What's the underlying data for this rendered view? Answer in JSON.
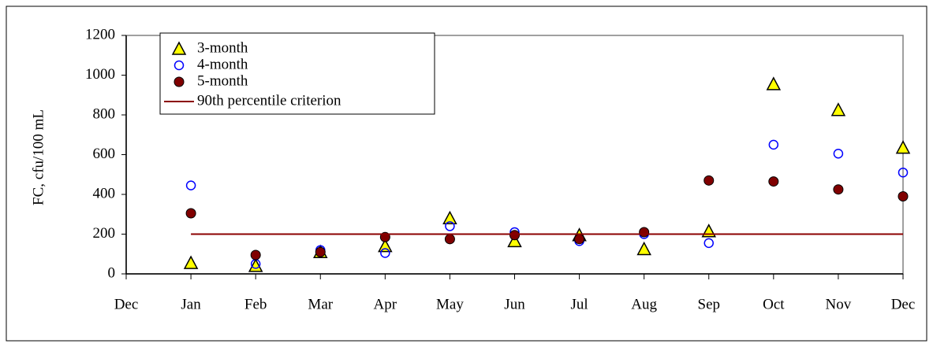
{
  "chart_data": {
    "type": "scatter",
    "y_label": "FC, cfu/100 mL",
    "categories": [
      "Dec",
      "Jan",
      "Feb",
      "Mar",
      "Apr",
      "May",
      "Jun",
      "Jul",
      "Aug",
      "Sep",
      "Oct",
      "Nov",
      "Dec"
    ],
    "series": [
      {
        "name": "3-month",
        "color": "#ffff00",
        "marker": "triangle",
        "values": [
          null,
          55,
          40,
          110,
          140,
          280,
          165,
          195,
          125,
          215,
          955,
          825,
          635
        ]
      },
      {
        "name": "4-month",
        "color": "#0000ff",
        "marker": "open-circle",
        "values": [
          null,
          445,
          50,
          120,
          105,
          240,
          210,
          165,
          200,
          155,
          650,
          605,
          510
        ]
      },
      {
        "name": "5-month",
        "color": "#800000",
        "marker": "filled-circle",
        "values": [
          null,
          305,
          95,
          110,
          185,
          175,
          195,
          175,
          210,
          470,
          465,
          425,
          390
        ]
      },
      {
        "name": "90th percentile criterion",
        "color": "#8b0000",
        "marker": "line",
        "values": [
          null,
          200,
          200,
          200,
          200,
          200,
          200,
          200,
          200,
          200,
          200,
          200,
          200
        ]
      }
    ],
    "ylim": [
      0,
      1200
    ],
    "yticks": [
      0,
      200,
      400,
      600,
      800,
      1000,
      1200
    ],
    "grid": false
  }
}
